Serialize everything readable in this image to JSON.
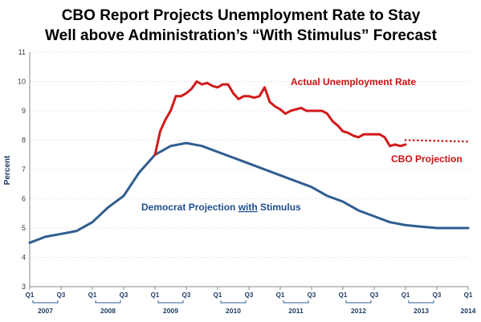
{
  "chart_data": {
    "type": "line",
    "title_lines": [
      "CBO Report Projects Unemployment Rate to Stay",
      "Well above Administration’s “With Stimulus” Forecast"
    ],
    "ylabel": "Percent",
    "ylim": [
      3,
      11
    ],
    "yticks": [
      "3",
      "4",
      "5",
      "6",
      "7",
      "8",
      "9",
      "10",
      "11"
    ],
    "xlim": [
      2007.0,
      2014.0
    ],
    "grid": true,
    "quarter_ticks": [
      {
        "label": "Q1",
        "x": 2007.0
      },
      {
        "label": "Q3",
        "x": 2007.5
      },
      {
        "label": "Q1",
        "x": 2008.0
      },
      {
        "label": "Q3",
        "x": 2008.5
      },
      {
        "label": "Q1",
        "x": 2009.0
      },
      {
        "label": "Q3",
        "x": 2009.5
      },
      {
        "label": "Q1",
        "x": 2010.0
      },
      {
        "label": "Q3",
        "x": 2010.5
      },
      {
        "label": "Q1",
        "x": 2011.0
      },
      {
        "label": "Q3",
        "x": 2011.5
      },
      {
        "label": "Q1",
        "x": 2012.0
      },
      {
        "label": "Q3",
        "x": 2012.5
      },
      {
        "label": "Q1",
        "x": 2013.0
      },
      {
        "label": "Q3",
        "x": 2013.5
      },
      {
        "label": "Q1",
        "x": 2014.0
      }
    ],
    "year_labels": [
      {
        "label": "2007",
        "x": 2007.25
      },
      {
        "label": "2008",
        "x": 2008.25
      },
      {
        "label": "2009",
        "x": 2009.25
      },
      {
        "label": "2010",
        "x": 2010.25
      },
      {
        "label": "2011",
        "x": 2011.25
      },
      {
        "label": "2012",
        "x": 2012.25
      },
      {
        "label": "2013",
        "x": 2013.25
      },
      {
        "label": "2014",
        "x": 2014.0
      }
    ],
    "series": [
      {
        "name": "Actual Unemployment Rate",
        "color": "#d11a1a",
        "style": "solid",
        "points": [
          [
            2009.0,
            7.5
          ],
          [
            2009.083,
            8.3
          ],
          [
            2009.167,
            8.7
          ],
          [
            2009.25,
            9.0
          ],
          [
            2009.333,
            9.5
          ],
          [
            2009.417,
            9.5
          ],
          [
            2009.5,
            9.6
          ],
          [
            2009.583,
            9.75
          ],
          [
            2009.667,
            10.0
          ],
          [
            2009.75,
            9.9
          ],
          [
            2009.833,
            9.95
          ],
          [
            2009.917,
            9.85
          ],
          [
            2010.0,
            9.8
          ],
          [
            2010.083,
            9.9
          ],
          [
            2010.167,
            9.9
          ],
          [
            2010.25,
            9.6
          ],
          [
            2010.333,
            9.4
          ],
          [
            2010.417,
            9.5
          ],
          [
            2010.5,
            9.5
          ],
          [
            2010.583,
            9.45
          ],
          [
            2010.667,
            9.5
          ],
          [
            2010.75,
            9.8
          ],
          [
            2010.833,
            9.3
          ],
          [
            2010.917,
            9.15
          ],
          [
            2011.0,
            9.05
          ],
          [
            2011.083,
            8.9
          ],
          [
            2011.167,
            9.0
          ],
          [
            2011.25,
            9.05
          ],
          [
            2011.333,
            9.1
          ],
          [
            2011.417,
            9.0
          ],
          [
            2011.5,
            9.0
          ],
          [
            2011.583,
            9.0
          ],
          [
            2011.667,
            9.0
          ],
          [
            2011.75,
            8.9
          ],
          [
            2011.833,
            8.65
          ],
          [
            2011.917,
            8.5
          ],
          [
            2012.0,
            8.3
          ],
          [
            2012.083,
            8.25
          ],
          [
            2012.167,
            8.15
          ],
          [
            2012.25,
            8.1
          ],
          [
            2012.333,
            8.2
          ],
          [
            2012.417,
            8.2
          ],
          [
            2012.5,
            8.2
          ],
          [
            2012.583,
            8.2
          ],
          [
            2012.667,
            8.1
          ],
          [
            2012.75,
            7.8
          ],
          [
            2012.833,
            7.85
          ],
          [
            2012.917,
            7.8
          ],
          [
            2013.0,
            7.85
          ]
        ]
      },
      {
        "name": "CBO Projection",
        "color": "#d11a1a",
        "style": "dotted",
        "points": [
          [
            2013.0,
            8.0
          ],
          [
            2014.0,
            7.95
          ]
        ]
      },
      {
        "name": "Democrat Projection with Stimulus",
        "color": "#2f5d8f",
        "style": "solid",
        "points": [
          [
            2007.0,
            4.5
          ],
          [
            2007.25,
            4.7
          ],
          [
            2007.5,
            4.8
          ],
          [
            2007.75,
            4.9
          ],
          [
            2008.0,
            5.2
          ],
          [
            2008.25,
            5.7
          ],
          [
            2008.5,
            6.1
          ],
          [
            2008.75,
            6.9
          ],
          [
            2009.0,
            7.5
          ],
          [
            2009.25,
            7.8
          ],
          [
            2009.5,
            7.9
          ],
          [
            2009.75,
            7.8
          ],
          [
            2010.0,
            7.6
          ],
          [
            2010.25,
            7.4
          ],
          [
            2010.5,
            7.2
          ],
          [
            2010.75,
            7.0
          ],
          [
            2011.0,
            6.8
          ],
          [
            2011.25,
            6.6
          ],
          [
            2011.5,
            6.4
          ],
          [
            2011.75,
            6.1
          ],
          [
            2012.0,
            5.9
          ],
          [
            2012.25,
            5.6
          ],
          [
            2012.5,
            5.4
          ],
          [
            2012.75,
            5.2
          ],
          [
            2013.0,
            5.1
          ],
          [
            2013.25,
            5.05
          ],
          [
            2013.5,
            5.0
          ],
          [
            2013.75,
            5.0
          ],
          [
            2014.0,
            5.0
          ]
        ]
      }
    ],
    "annotations": {
      "actual": "Actual Unemployment Rate",
      "cbo": "CBO Projection",
      "democrat_prefix": "Democrat Projection ",
      "democrat_with": "with",
      "democrat_suffix": " Stimulus"
    }
  }
}
